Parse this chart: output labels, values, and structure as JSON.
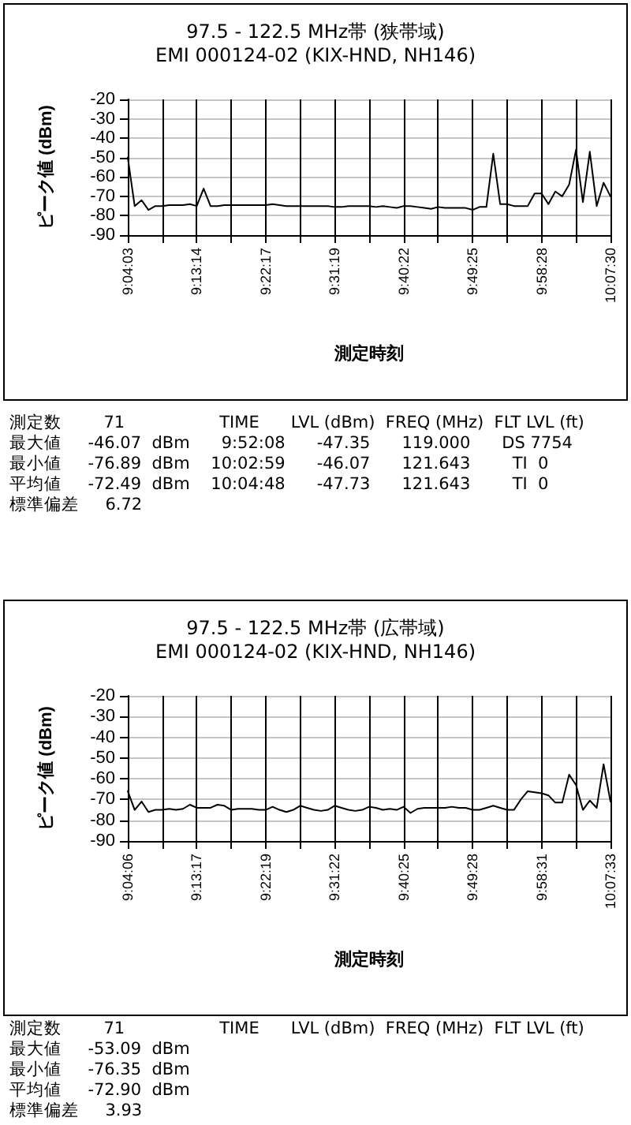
{
  "chart_data": [
    {
      "type": "line",
      "title": "97.5 - 122.5 MHz帯 (狭帯域)",
      "subtitle": "EMI 000124-02 (KIX-HND, NH146)",
      "xlabel": "測定時刻",
      "ylabel": "ピーク値 (dBm)",
      "categories": [
        "9:04:03",
        null,
        null,
        null,
        null,
        null,
        null,
        null,
        null,
        null,
        "9:13:14",
        null,
        null,
        null,
        null,
        null,
        null,
        null,
        null,
        null,
        "9:22:17",
        null,
        null,
        null,
        null,
        null,
        null,
        null,
        null,
        null,
        "9:31:19",
        null,
        null,
        null,
        null,
        null,
        null,
        null,
        null,
        null,
        "9:40:22",
        null,
        null,
        null,
        null,
        null,
        null,
        null,
        null,
        null,
        "9:49:25",
        null,
        null,
        null,
        null,
        null,
        null,
        null,
        null,
        null,
        "9:58:28",
        null,
        null,
        null,
        null,
        null,
        null,
        null,
        null,
        null,
        "10:07:30"
      ],
      "series": [
        {
          "color": "#000000",
          "values": [
            -50,
            -75,
            -72,
            -77,
            -75,
            -75,
            -74.5,
            -74.5,
            -74.5,
            -74,
            -75,
            -66,
            -75,
            -75,
            -74.5,
            -74.5,
            -74.5,
            -74.5,
            -74.5,
            -74.5,
            -74.5,
            -74,
            -74.5,
            -75,
            -75,
            -75,
            -75,
            -75,
            -75,
            -75,
            -75.5,
            -75.5,
            -75,
            -75,
            -75,
            -75,
            -75.5,
            -75,
            -75.5,
            -76,
            -75,
            -75,
            -75.5,
            -76,
            -76.5,
            -75.5,
            -76,
            -76,
            -76,
            -76,
            -77,
            -75.5,
            -75.5,
            -48,
            -74,
            -74,
            -75,
            -75,
            -75,
            -68.5,
            -68.5,
            -74,
            -67.5,
            -70,
            -64,
            -46,
            -73,
            -47,
            -75,
            -63,
            -70
          ]
        }
      ],
      "ylim": [
        -90,
        -20
      ],
      "yticks": [
        -90,
        -80,
        -70,
        -60,
        -50,
        -40,
        -30,
        -20
      ],
      "grid": true,
      "marker": "none",
      "line_style": "solid",
      "annotations": [
        "測定数        71                  TIME      LVL (dBm)  FREQ (MHz)  FLT LVL (ft)",
        "最大値     -46.07  dBm      9:52:08      -47.35      119.000      DS 7754",
        "最小値     -76.89  dBm    10:02:59      -46.07      121.643        TI  0",
        "平均値     -72.49  dBm    10:04:48      -47.73      121.643        TI  0",
        "標準偏差     6.72"
      ]
    },
    {
      "type": "line",
      "title": "97.5 - 122.5 MHz帯 (広帯域)",
      "subtitle": "EMI 000124-02 (KIX-HND, NH146)",
      "xlabel": "測定時刻",
      "ylabel": "ピーク値 (dBm)",
      "categories": [
        "9:04:06",
        null,
        null,
        null,
        null,
        null,
        null,
        null,
        null,
        null,
        "9:13:17",
        null,
        null,
        null,
        null,
        null,
        null,
        null,
        null,
        null,
        "9:22:19",
        null,
        null,
        null,
        null,
        null,
        null,
        null,
        null,
        null,
        "9:31:22",
        null,
        null,
        null,
        null,
        null,
        null,
        null,
        null,
        null,
        "9:40:25",
        null,
        null,
        null,
        null,
        null,
        null,
        null,
        null,
        null,
        "9:49:28",
        null,
        null,
        null,
        null,
        null,
        null,
        null,
        null,
        null,
        "9:58:31",
        null,
        null,
        null,
        null,
        null,
        null,
        null,
        null,
        null,
        "10:07:33"
      ],
      "series": [
        {
          "color": "#000000",
          "values": [
            -66,
            -75,
            -71,
            -76,
            -75,
            -75,
            -74.5,
            -75,
            -74.5,
            -72.5,
            -74,
            -74,
            -74,
            -72.5,
            -73,
            -75,
            -74.5,
            -74.5,
            -74.5,
            -75,
            -75,
            -73.5,
            -75,
            -76,
            -75,
            -73,
            -74,
            -75,
            -75.5,
            -75,
            -73,
            -74,
            -75,
            -75.5,
            -75,
            -73.5,
            -74,
            -75,
            -74.5,
            -75,
            -73.5,
            -76.5,
            -74.5,
            -74,
            -74,
            -74,
            -74,
            -73.5,
            -74,
            -74,
            -75,
            -75,
            -74,
            -73,
            -74,
            -75,
            -75,
            -70,
            -66,
            -66.5,
            -67,
            -68,
            -71.5,
            -71.5,
            -58,
            -63,
            -75,
            -70.5,
            -74,
            -53,
            -71
          ]
        }
      ],
      "ylim": [
        -90,
        -20
      ],
      "yticks": [
        -90,
        -80,
        -70,
        -60,
        -50,
        -40,
        -30,
        -20
      ],
      "grid": true,
      "marker": "none",
      "line_style": "solid",
      "annotations": [
        "測定数        71                  TIME      LVL (dBm)  FREQ (MHz)  FLT LVL (ft)",
        "最大値     -53.09  dBm",
        "最小値     -76.35  dBm",
        "平均値     -72.90  dBm",
        "標準偏差     3.93"
      ]
    }
  ]
}
